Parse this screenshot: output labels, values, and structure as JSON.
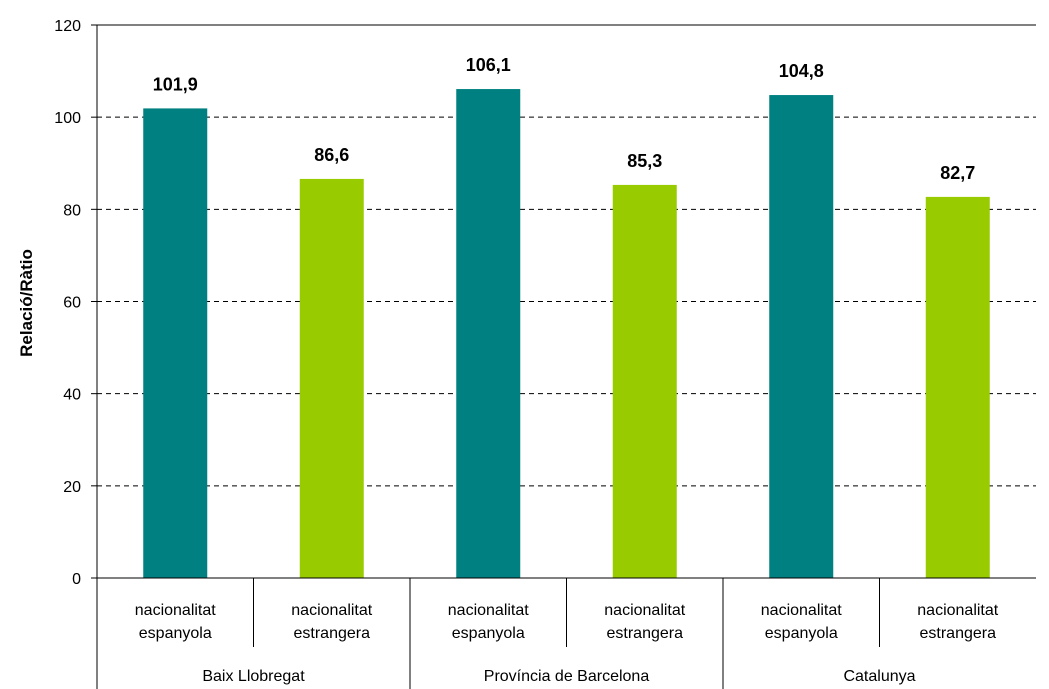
{
  "chart_data": {
    "type": "bar",
    "ylabel": "Relació/Ràtio",
    "ylim": [
      0,
      120
    ],
    "yticks": [
      0,
      20,
      40,
      60,
      80,
      100,
      120
    ],
    "grid": true,
    "groups": [
      {
        "name": "Baix Llobregat",
        "bars": [
          {
            "label": [
              "nacionalitat",
              "espanyola"
            ],
            "value": 101.9,
            "display": "101,9",
            "color": "#008080"
          },
          {
            "label": [
              "nacionalitat",
              "estrangera"
            ],
            "value": 86.6,
            "display": "86,6",
            "color": "#99cc00"
          }
        ]
      },
      {
        "name": "Província de Barcelona",
        "bars": [
          {
            "label": [
              "nacionalitat",
              "espanyola"
            ],
            "value": 106.1,
            "display": "106,1",
            "color": "#008080"
          },
          {
            "label": [
              "nacionalitat",
              "estrangera"
            ],
            "value": 85.3,
            "display": "85,3",
            "color": "#99cc00"
          }
        ]
      },
      {
        "name": "Catalunya",
        "bars": [
          {
            "label": [
              "nacionalitat",
              "espanyola"
            ],
            "value": 104.8,
            "display": "104,8",
            "color": "#008080"
          },
          {
            "label": [
              "nacionalitat",
              "estrangera"
            ],
            "value": 82.7,
            "display": "82,7",
            "color": "#99cc00"
          }
        ]
      }
    ]
  }
}
